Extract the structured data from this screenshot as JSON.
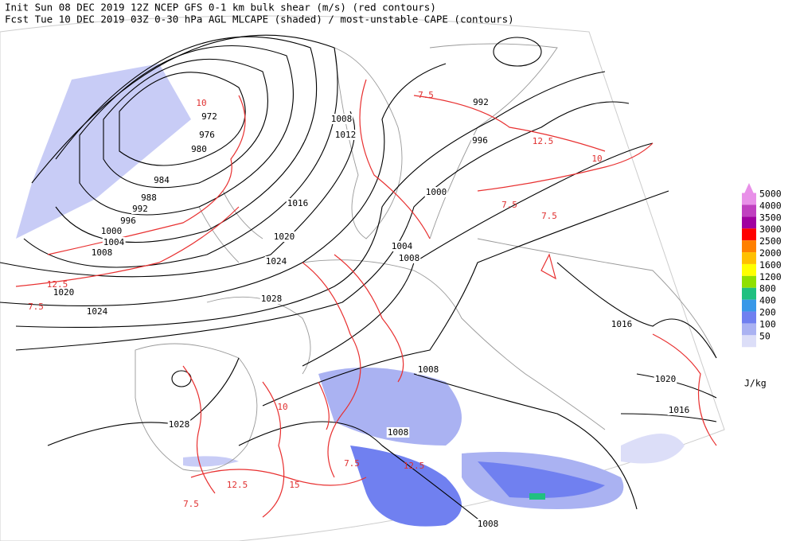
{
  "header": {
    "line1": "Init  Sun 08 DEC 2019 12Z  NCEP GFS 0-1 km bulk shear (m/s) (red contours)",
    "line2": "Fcst Tue 10 DEC 2019 03Z  0-30 hPa AGL MLCAPE (shaded) / most-unstable CAPE (contours)"
  },
  "isobar_labels": [
    972,
    976,
    980,
    984,
    988,
    992,
    996,
    1000,
    1004,
    1008,
    1020,
    1024,
    1016,
    1020,
    1024,
    1028,
    1008,
    1012,
    992,
    996,
    1000,
    1004,
    1008,
    1016,
    1020,
    1016,
    1008,
    1008,
    1008,
    1028
  ],
  "shear_labels": [
    "10",
    "7.5",
    "12.5",
    "7.5",
    "7.5",
    "12.5",
    "7.5",
    "10",
    "12.5",
    "7.5",
    "15",
    "10",
    "7.5",
    "12.5"
  ],
  "colorbar": {
    "unit": "J/kg",
    "levels": [
      {
        "label": 5000,
        "color": "#e890e8"
      },
      {
        "label": 4000,
        "color": "#c040c0"
      },
      {
        "label": 3500,
        "color": "#a000a0"
      },
      {
        "label": 3000,
        "color": "#ff0000"
      },
      {
        "label": 2500,
        "color": "#ff8000"
      },
      {
        "label": 2000,
        "color": "#ffc000"
      },
      {
        "label": 1600,
        "color": "#ffff00"
      },
      {
        "label": 1200,
        "color": "#90e000"
      },
      {
        "label": 800,
        "color": "#20c080"
      },
      {
        "label": 400,
        "color": "#3898e8"
      },
      {
        "label": 200,
        "color": "#7080f0"
      },
      {
        "label": 100,
        "color": "#aab2f2"
      },
      {
        "label": 50,
        "color": "#dcdef8"
      }
    ]
  }
}
